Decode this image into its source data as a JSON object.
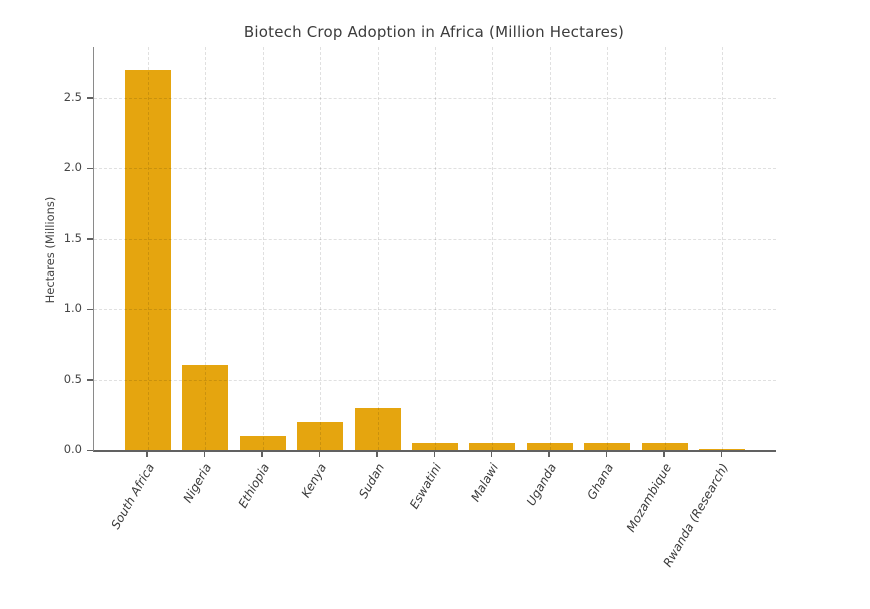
{
  "chart_data": {
    "type": "bar",
    "title": "Biotech Crop Adoption in Africa (Million Hectares)",
    "xlabel": "",
    "ylabel": "Hectares (Millions)",
    "categories": [
      "South Africa",
      "Nigeria",
      "Ethiopia",
      "Kenya",
      "Sudan",
      "Eswatini",
      "Malawi",
      "Uganda",
      "Ghana",
      "Mozambique",
      "Rwanda (Research)"
    ],
    "values": [
      2.7,
      0.6,
      0.1,
      0.2,
      0.3,
      0.05,
      0.05,
      0.05,
      0.05,
      0.05,
      0.01
    ],
    "ylim": [
      0,
      2.86
    ],
    "yticks": [
      0,
      0.5,
      1.0,
      1.5,
      2.0,
      2.5
    ],
    "ytick_labels": [
      "0.0",
      "0.5",
      "1.0",
      "1.5",
      "2.0",
      "2.5"
    ],
    "grid": true,
    "legend": "none",
    "bar_color": "#E5A50F",
    "grid_color": "#e0e0e0",
    "spine_color": "#616161",
    "title_color": "#3c3c3c",
    "tick_label_color": "#454545"
  }
}
